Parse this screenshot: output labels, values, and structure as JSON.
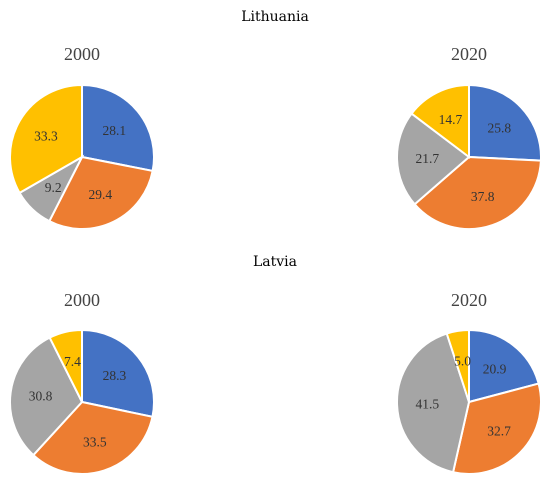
{
  "colors": {
    "blue": "#4472C4",
    "orange": "#ED7D31",
    "gray": "#A5A5A5",
    "yellow": "#FFC000"
  },
  "chart_data": [
    {
      "type": "pie",
      "group": "Lithuania",
      "title": "2000",
      "labels": [
        "28.1",
        "29.4",
        "9.2",
        "33.3"
      ],
      "values": [
        28.1,
        29.4,
        9.2,
        33.3
      ],
      "colors": [
        "#4472C4",
        "#ED7D31",
        "#A5A5A5",
        "#FFC000"
      ]
    },
    {
      "type": "pie",
      "group": "Lithuania",
      "title": "2020",
      "labels": [
        "25.8",
        "37.8",
        "21.7",
        "14.7"
      ],
      "values": [
        25.8,
        37.8,
        21.7,
        14.7
      ],
      "colors": [
        "#4472C4",
        "#ED7D31",
        "#A5A5A5",
        "#FFC000"
      ]
    },
    {
      "type": "pie",
      "group": "Latvia",
      "title": "2000",
      "labels": [
        "28.3",
        "33.5",
        "30.8",
        "7.4"
      ],
      "values": [
        28.3,
        33.5,
        30.8,
        7.4
      ],
      "colors": [
        "#4472C4",
        "#ED7D31",
        "#A5A5A5",
        "#FFC000"
      ]
    },
    {
      "type": "pie",
      "group": "Latvia",
      "title": "2020",
      "labels": [
        "20.9",
        "32.7",
        "41.5",
        "5.0"
      ],
      "values": [
        20.9,
        32.7,
        41.5,
        5.0
      ],
      "colors": [
        "#4472C4",
        "#ED7D31",
        "#A5A5A5",
        "#FFC000"
      ]
    }
  ],
  "groups": {
    "lithuania": {
      "title": "Lithuania"
    },
    "latvia": {
      "title": "Latvia"
    }
  }
}
